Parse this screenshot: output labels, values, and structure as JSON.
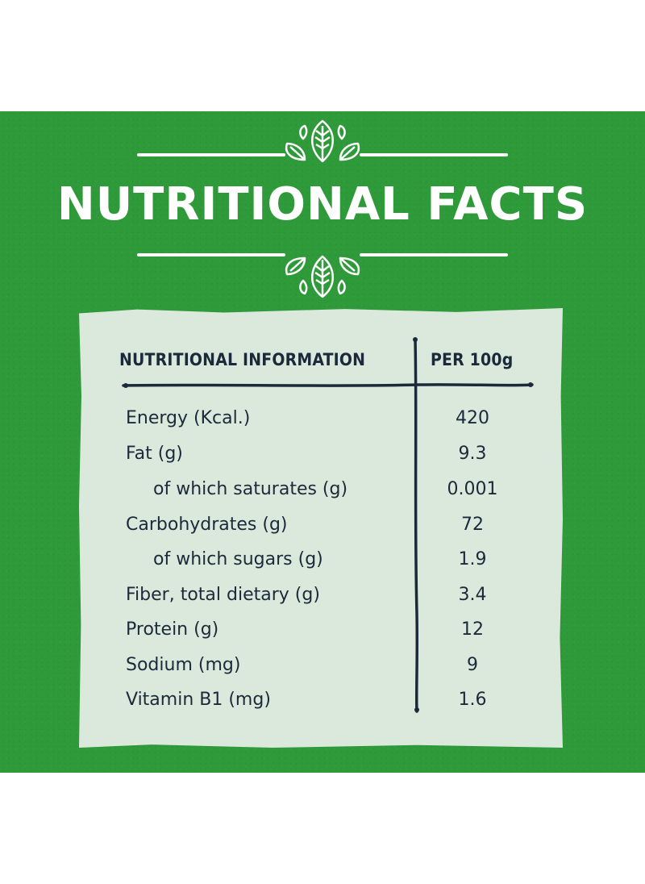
{
  "title": "NUTRITIONAL FACTS",
  "colors": {
    "background": "#2f9a3a",
    "card": "#dbe9dc",
    "text": "#1b2a3a",
    "title": "#ffffff"
  },
  "icons": {
    "ornament_top": "leaf-sprig-icon",
    "ornament_bottom": "leaf-sprig-icon"
  },
  "table": {
    "header": {
      "left": "NUTRITIONAL INFORMATION",
      "right": "PER 100g"
    },
    "rows": [
      {
        "label": "Energy (Kcal.)",
        "value": "420",
        "indent": false
      },
      {
        "label": "Fat (g)",
        "value": "9.3",
        "indent": false
      },
      {
        "label": "of which saturates (g)",
        "value": "0.001",
        "indent": true
      },
      {
        "label": "Carbohydrates (g)",
        "value": "72",
        "indent": false
      },
      {
        "label": "of which sugars (g)",
        "value": "1.9",
        "indent": true
      },
      {
        "label": "Fiber, total dietary (g)",
        "value": "3.4",
        "indent": false
      },
      {
        "label": "Protein (g)",
        "value": "12",
        "indent": false
      },
      {
        "label": "Sodium (mg)",
        "value": "9",
        "indent": false
      },
      {
        "label": "Vitamin B1 (mg)",
        "value": "1.6",
        "indent": false
      }
    ]
  }
}
